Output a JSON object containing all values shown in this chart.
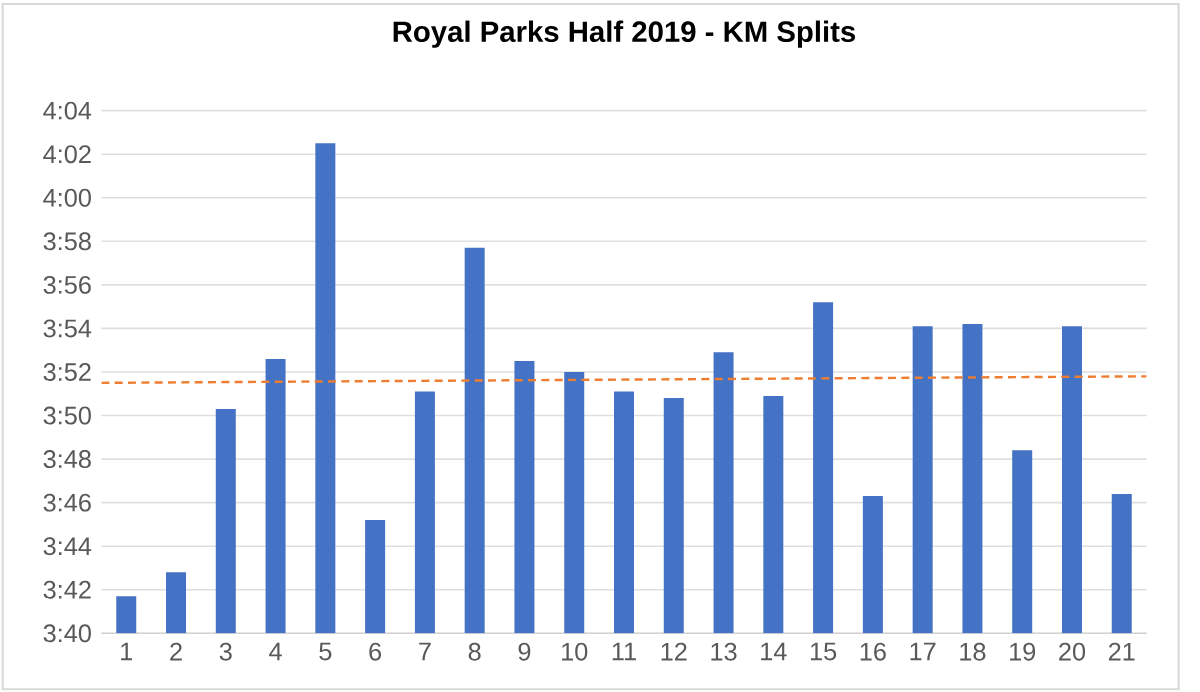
{
  "chart_data": {
    "type": "bar",
    "title": "Royal Parks Half 2019 - KM Splits",
    "x": [
      1,
      2,
      3,
      4,
      5,
      6,
      7,
      8,
      9,
      10,
      11,
      12,
      13,
      14,
      15,
      16,
      17,
      18,
      19,
      20,
      21
    ],
    "series": [
      {
        "color": "#4472c4",
        "values": [
          221.7,
          222.8,
          230.3,
          232.6,
          242.5,
          225.2,
          231.1,
          237.7,
          232.5,
          232.0,
          231.1,
          230.8,
          232.9,
          230.9,
          235.2,
          226.3,
          234.1,
          234.2,
          228.4,
          234.1,
          226.4
        ]
      },
      {
        "type": "line",
        "color": "#ed7d31",
        "line_style": "dashed",
        "x": [
          0.5,
          21.5
        ],
        "values": [
          231.5,
          231.8
        ]
      }
    ],
    "xlim": [
      0.5,
      21.5
    ],
    "xticks": [
      1,
      2,
      3,
      4,
      5,
      6,
      7,
      8,
      9,
      10,
      11,
      12,
      13,
      14,
      15,
      16,
      17,
      18,
      19,
      20,
      21
    ],
    "ylim": [
      220,
      244
    ],
    "yticks": [
      {
        "value": 220,
        "label": "3:40"
      },
      {
        "value": 222,
        "label": "3:42"
      },
      {
        "value": 224,
        "label": "3:44"
      },
      {
        "value": 226,
        "label": "3:46"
      },
      {
        "value": 228,
        "label": "3:48"
      },
      {
        "value": 230,
        "label": "3:50"
      },
      {
        "value": 232,
        "label": "3:52"
      },
      {
        "value": 234,
        "label": "3:54"
      },
      {
        "value": 236,
        "label": "3:56"
      },
      {
        "value": 238,
        "label": "3:58"
      },
      {
        "value": 240,
        "label": "4:00"
      },
      {
        "value": 242,
        "label": "4:02"
      },
      {
        "value": 244,
        "label": "4:04"
      }
    ],
    "grid": "y",
    "marker": "none"
  }
}
